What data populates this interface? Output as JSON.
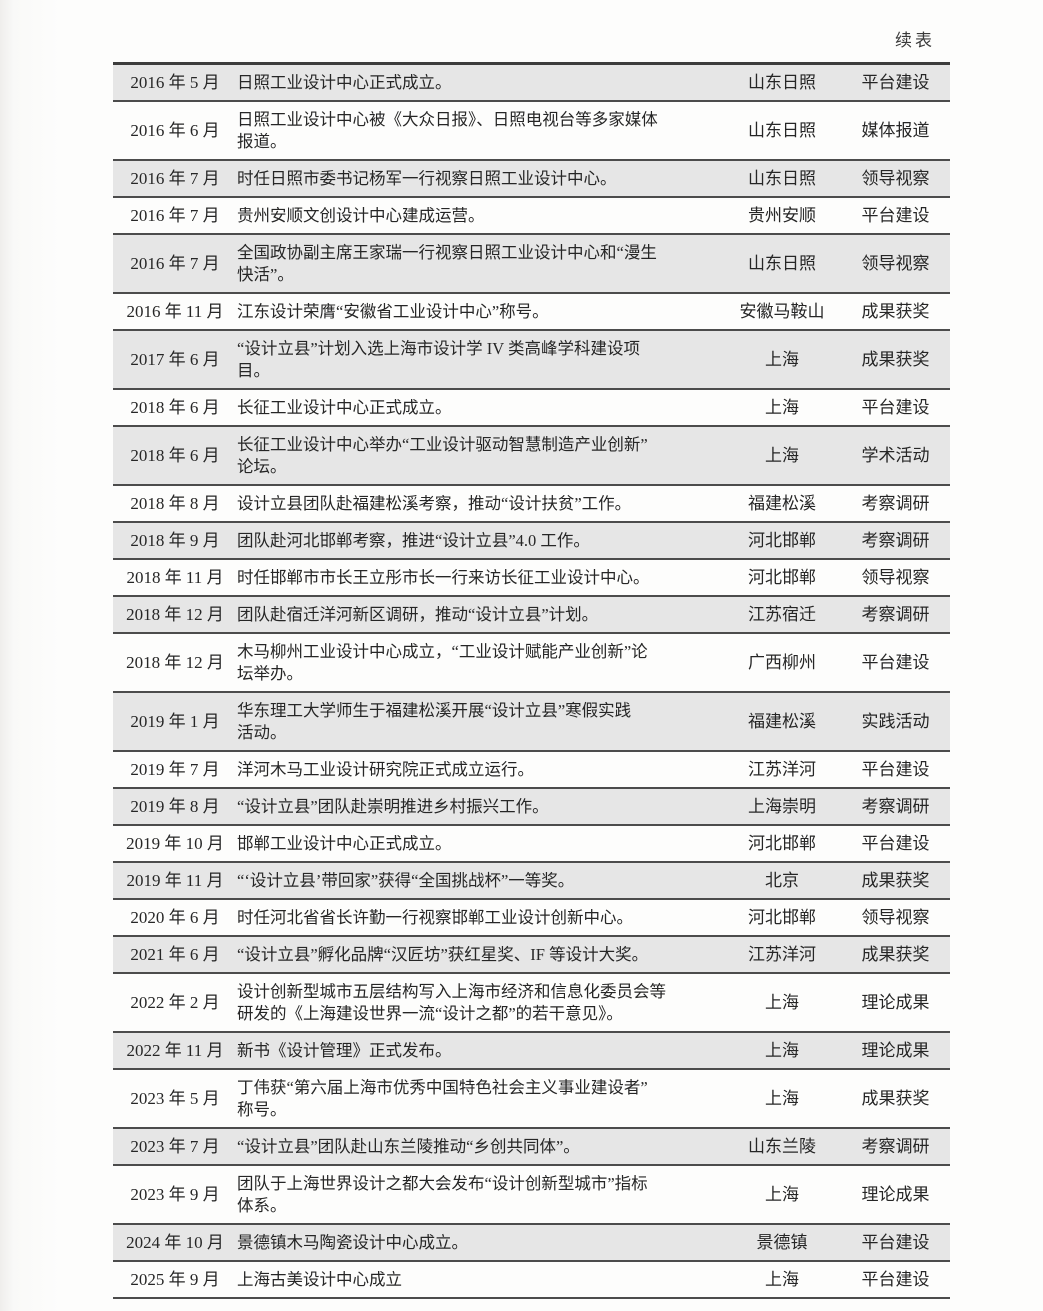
{
  "page": {
    "continued_label": "续表"
  },
  "table": {
    "columns": [
      "date",
      "event",
      "location",
      "category"
    ],
    "row_colors": {
      "shaded": "#e6e6e6",
      "plain": "#fdfdfc",
      "rule": "#4c4c4c"
    },
    "rows": [
      {
        "date": "2016 年 5 月",
        "event": "日照工业设计中心正式成立。",
        "location": "山东日照",
        "category": "平台建设"
      },
      {
        "date": "2016 年 6 月",
        "event": "日照工业设计中心被《大众日报》、日照电视台等多家媒体\n报道。",
        "location": "山东日照",
        "category": "媒体报道"
      },
      {
        "date": "2016 年 7 月",
        "event": "时任日照市委书记杨军一行视察日照工业设计中心。",
        "location": "山东日照",
        "category": "领导视察"
      },
      {
        "date": "2016 年 7 月",
        "event": "贵州安顺文创设计中心建成运营。",
        "location": "贵州安顺",
        "category": "平台建设"
      },
      {
        "date": "2016 年 7 月",
        "event": "全国政协副主席王家瑞一行视察日照工业设计中心和“漫生\n快活”。",
        "location": "山东日照",
        "category": "领导视察"
      },
      {
        "date": "2016 年 11 月",
        "event": "江东设计荣膺“安徽省工业设计中心”称号。",
        "location": "安徽马鞍山",
        "category": "成果获奖"
      },
      {
        "date": "2017 年 6 月",
        "event": "“设计立县”计划入选上海市设计学 IV 类高峰学科建设项\n目。",
        "location": "上海",
        "category": "成果获奖"
      },
      {
        "date": "2018 年 6 月",
        "event": "长征工业设计中心正式成立。",
        "location": "上海",
        "category": "平台建设"
      },
      {
        "date": "2018 年 6 月",
        "event": "长征工业设计中心举办“工业设计驱动智慧制造产业创新”\n论坛。",
        "location": "上海",
        "category": "学术活动"
      },
      {
        "date": "2018 年 8 月",
        "event": "设计立县团队赴福建松溪考察，推动“设计扶贫”工作。",
        "location": "福建松溪",
        "category": "考察调研"
      },
      {
        "date": "2018 年 9 月",
        "event": "团队赴河北邯郸考察，推进“设计立县”4.0 工作。",
        "location": "河北邯郸",
        "category": "考察调研"
      },
      {
        "date": "2018 年 11 月",
        "event": "时任邯郸市市长王立彤市长一行来访长征工业设计中心。",
        "location": "河北邯郸",
        "category": "领导视察"
      },
      {
        "date": "2018 年 12 月",
        "event": "团队赴宿迁洋河新区调研，推动“设计立县”计划。",
        "location": "江苏宿迁",
        "category": "考察调研"
      },
      {
        "date": "2018 年 12 月",
        "event": "木马柳州工业设计中心成立，“工业设计赋能产业创新”论\n坛举办。",
        "location": "广西柳州",
        "category": "平台建设"
      },
      {
        "date": "2019 年 1 月",
        "event": "华东理工大学师生于福建松溪开展“设计立县”寒假实践\n活动。",
        "location": "福建松溪",
        "category": "实践活动"
      },
      {
        "date": "2019 年 7 月",
        "event": "洋河木马工业设计研究院正式成立运行。",
        "location": "江苏洋河",
        "category": "平台建设"
      },
      {
        "date": "2019 年 8 月",
        "event": "“设计立县”团队赴崇明推进乡村振兴工作。",
        "location": "上海崇明",
        "category": "考察调研"
      },
      {
        "date": "2019 年 10 月",
        "event": "邯郸工业设计中心正式成立。",
        "location": "河北邯郸",
        "category": "平台建设"
      },
      {
        "date": "2019 年 11 月",
        "event": "“‘设计立县’带回家”获得“全国挑战杯”一等奖。",
        "location": "北京",
        "category": "成果获奖"
      },
      {
        "date": "2020 年 6 月",
        "event": "时任河北省省长许勤一行视察邯郸工业设计创新中心。",
        "location": "河北邯郸",
        "category": "领导视察"
      },
      {
        "date": "2021 年 6 月",
        "event": "“设计立县”孵化品牌“汉匠坊”获红星奖、IF 等设计大奖。",
        "location": "江苏洋河",
        "category": "成果获奖"
      },
      {
        "date": "2022 年 2 月",
        "event": "设计创新型城市五层结构写入上海市经济和信息化委员会等\n研发的《上海建设世界一流“设计之都”的若干意见》。",
        "location": "上海",
        "category": "理论成果"
      },
      {
        "date": "2022 年 11 月",
        "event": "新书《设计管理》正式发布。",
        "location": "上海",
        "category": "理论成果"
      },
      {
        "date": "2023 年 5 月",
        "event": "丁伟获“第六届上海市优秀中国特色社会主义事业建设者”\n称号。",
        "location": "上海",
        "category": "成果获奖"
      },
      {
        "date": "2023 年 7 月",
        "event": "“设计立县”团队赴山东兰陵推动“乡创共同体”。",
        "location": "山东兰陵",
        "category": "考察调研"
      },
      {
        "date": "2023 年 9 月",
        "event": "团队于上海世界设计之都大会发布“设计创新型城市”指标\n体系。",
        "location": "上海",
        "category": "理论成果"
      },
      {
        "date": "2024 年 10 月",
        "event": "景德镇木马陶瓷设计中心成立。",
        "location": "景德镇",
        "category": "平台建设"
      },
      {
        "date": "2025 年 9 月",
        "event": "上海古美设计中心成立",
        "location": "上海",
        "category": "平台建设"
      }
    ]
  }
}
